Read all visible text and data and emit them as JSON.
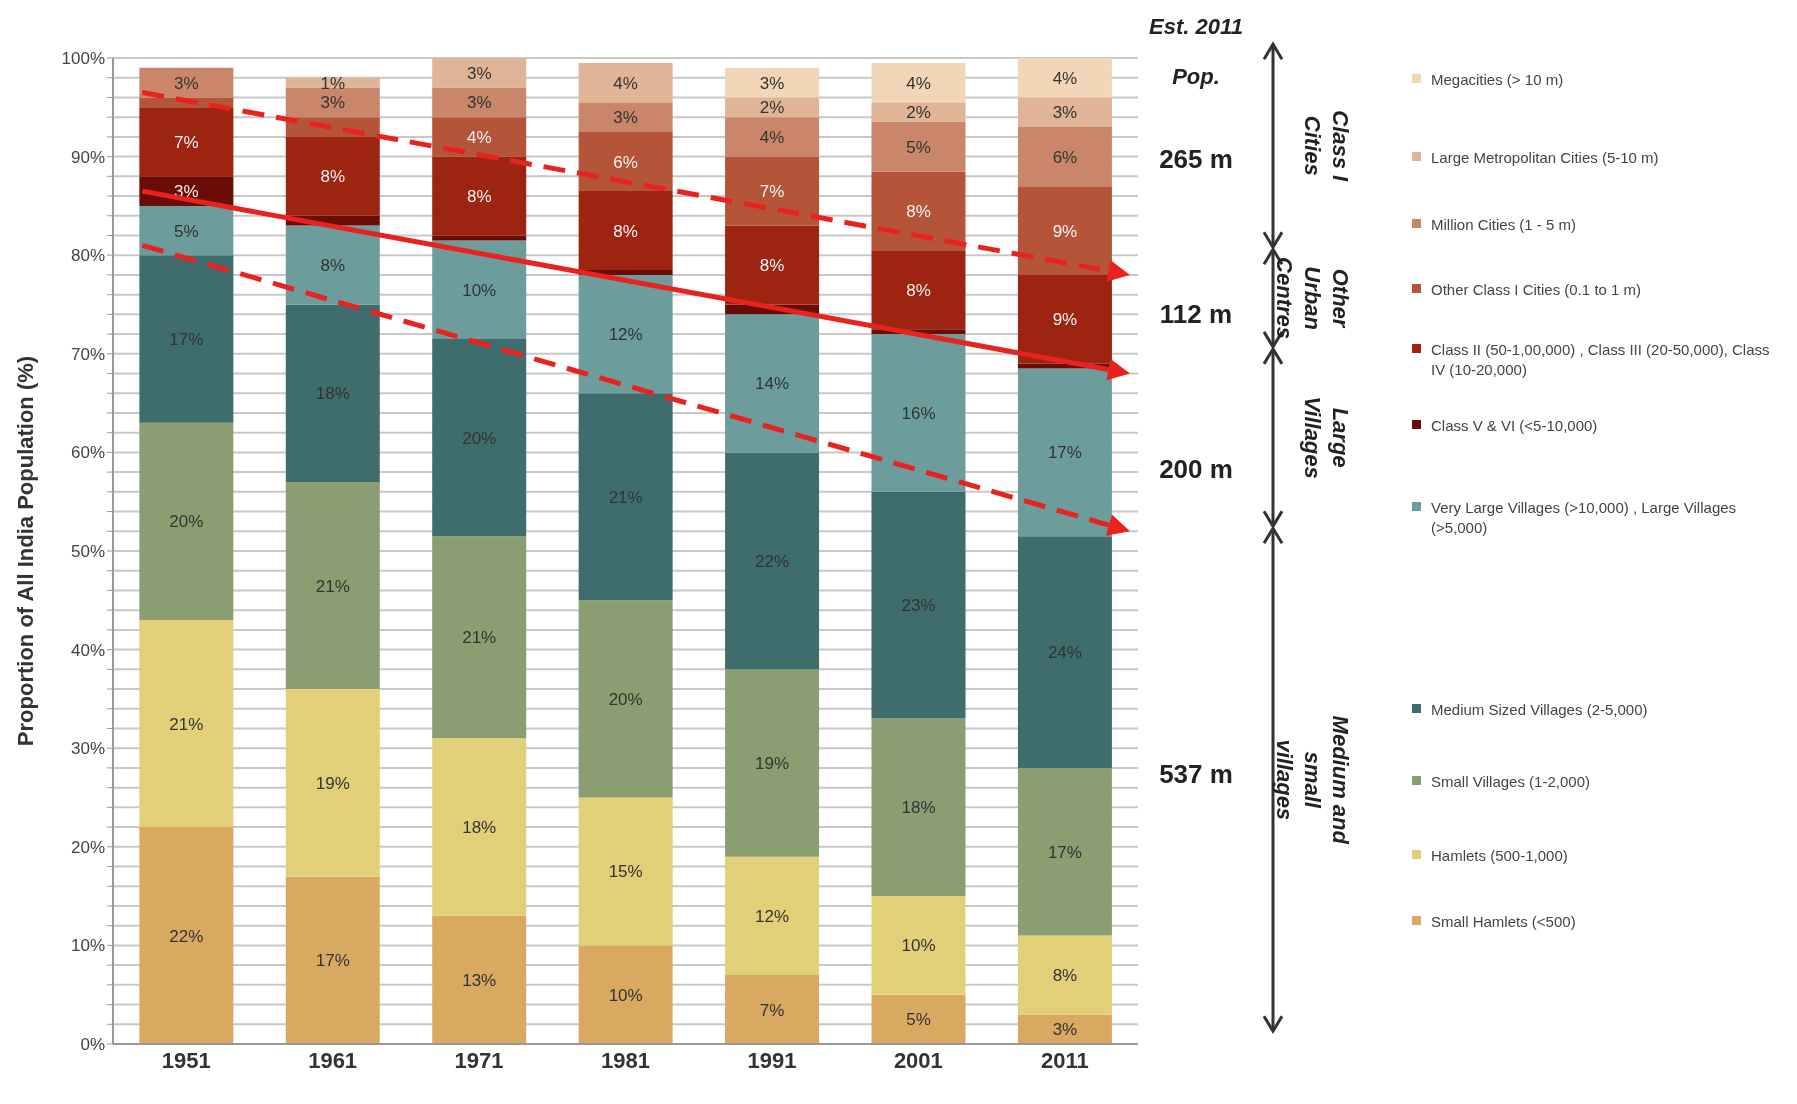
{
  "chart_data": {
    "type": "bar",
    "stacked": true,
    "ylabel": "Proportion of All India Population (%)",
    "categories": [
      "1951",
      "1961",
      "1971",
      "1981",
      "1991",
      "2001",
      "2011"
    ],
    "series": [
      {
        "name": "Small Hamlets (<500)",
        "color": "#d9a962",
        "values": [
          22,
          17,
          13,
          10,
          7,
          5,
          3
        ],
        "value_labels": [
          "22%",
          "17%",
          "13%",
          "10%",
          "7%",
          "5%",
          "3%"
        ]
      },
      {
        "name": "Hamlets (500-1,000)",
        "color": "#e2d078",
        "values": [
          21,
          19,
          18,
          15,
          12,
          10,
          8
        ],
        "value_labels": [
          "21%",
          "19%",
          "18%",
          "15%",
          "12%",
          "10%",
          "8%"
        ]
      },
      {
        "name": "Small Villages (1-2,000)",
        "color": "#8a9e72",
        "values": [
          20,
          21,
          20.5,
          20,
          19,
          18,
          17
        ],
        "value_labels": [
          "20%",
          "21%",
          "21%",
          "20%",
          "19%",
          "18%",
          "17%"
        ]
      },
      {
        "name": "Medium Sized Villages (2-5,000)",
        "color": "#3f6c6c",
        "values": [
          17,
          18,
          20,
          21,
          22,
          23,
          23.5
        ],
        "value_labels": [
          "17%",
          "18%",
          "20%",
          "21%",
          "22%",
          "23%",
          "24%"
        ]
      },
      {
        "name": "Very Large Villages (>10,000) , Large Villages (>5,000)",
        "color": "#6c9d9c",
        "values": [
          5,
          8,
          10,
          12,
          14,
          16,
          17
        ],
        "value_labels": [
          "5%",
          "8%",
          "10%",
          "12%",
          "14%",
          "16%",
          "17%"
        ]
      },
      {
        "name": "Class V & VI  (<5-10,000)",
        "color": "#6b0d07",
        "values": [
          3,
          1,
          0.5,
          0.5,
          1,
          0.5,
          0.5
        ],
        "value_labels": [
          "3%",
          null,
          null,
          null,
          null,
          null,
          null
        ]
      },
      {
        "name": "Class II (50-1,00,000) , Class III (20-50,000), Class IV (10-20,000)",
        "color": "#9c2411",
        "values": [
          7,
          8,
          8,
          8,
          8,
          8,
          9
        ],
        "value_labels": [
          "7%",
          "8%",
          "8%",
          "8%",
          "8%",
          "8%",
          "9%"
        ]
      },
      {
        "name": "Other Class I Cities (0.1 to 1 m)",
        "color": "#b4553a",
        "values": [
          1,
          2,
          4,
          6,
          7,
          8,
          9
        ],
        "value_labels": [
          null,
          null,
          "4%",
          "6%",
          "7%",
          "8%",
          "9%"
        ]
      },
      {
        "name": "Million Cities (1 - 5 m)",
        "color": "#c9866a",
        "values": [
          3,
          3,
          3,
          3,
          4,
          5,
          6
        ],
        "value_labels": [
          "3%",
          "3%",
          "3%",
          "3%",
          "4%",
          "5%",
          "6%"
        ]
      },
      {
        "name": "Large Metropolitan Cities (5-10 m)",
        "color": "#e0b497",
        "values": [
          0,
          1,
          3,
          4,
          2,
          2,
          3
        ],
        "value_labels": [
          null,
          "1%",
          "3%",
          "4%",
          "2%",
          "2%",
          "3%"
        ]
      },
      {
        "name": "Megacities (> 10 m)",
        "color": "#f3d6b8",
        "values": [
          0,
          0,
          0,
          0,
          3,
          4,
          4
        ],
        "value_labels": [
          null,
          null,
          null,
          null,
          "3%",
          "4%",
          "4%"
        ]
      }
    ],
    "ylim": [
      0,
      100
    ],
    "yticks": [
      {
        "value": 0,
        "label": "0%"
      },
      {
        "value": 2,
        "label": null
      },
      {
        "value": 4,
        "label": null
      },
      {
        "value": 6,
        "label": null
      },
      {
        "value": 8,
        "label": null
      },
      {
        "value": 10,
        "label": "10%"
      },
      {
        "value": 12,
        "label": null
      },
      {
        "value": 14,
        "label": null
      },
      {
        "value": 16,
        "label": null
      },
      {
        "value": 18,
        "label": null
      },
      {
        "value": 20,
        "label": "20%"
      },
      {
        "value": 22,
        "label": null
      },
      {
        "value": 24,
        "label": null
      },
      {
        "value": 26,
        "label": null
      },
      {
        "value": 28,
        "label": null
      },
      {
        "value": 30,
        "label": "30%"
      },
      {
        "value": 32,
        "label": null
      },
      {
        "value": 34,
        "label": null
      },
      {
        "value": 36,
        "label": null
      },
      {
        "value": 38,
        "label": null
      },
      {
        "value": 40,
        "label": "40%"
      },
      {
        "value": 42,
        "label": null
      },
      {
        "value": 44,
        "label": null
      },
      {
        "value": 46,
        "label": null
      },
      {
        "value": 48,
        "label": null
      },
      {
        "value": 50,
        "label": "50%"
      },
      {
        "value": 52,
        "label": null
      },
      {
        "value": 54,
        "label": null
      },
      {
        "value": 56,
        "label": null
      },
      {
        "value": 58,
        "label": null
      },
      {
        "value": 60,
        "label": "60%"
      },
      {
        "value": 62,
        "label": null
      },
      {
        "value": 64,
        "label": null
      },
      {
        "value": 66,
        "label": null
      },
      {
        "value": 68,
        "label": null
      },
      {
        "value": 70,
        "label": "70%"
      },
      {
        "value": 72,
        "label": null
      },
      {
        "value": 74,
        "label": null
      },
      {
        "value": 76,
        "label": null
      },
      {
        "value": 78,
        "label": null
      },
      {
        "value": 80,
        "label": "80%"
      },
      {
        "value": 82,
        "label": null
      },
      {
        "value": 84,
        "label": null
      },
      {
        "value": 86,
        "label": null
      },
      {
        "value": 88,
        "label": null
      },
      {
        "value": 90,
        "label": "90%"
      },
      {
        "value": 92,
        "label": null
      },
      {
        "value": 94,
        "label": null
      },
      {
        "value": 96,
        "label": null
      },
      {
        "value": 98,
        "label": null
      },
      {
        "value": 100,
        "label": "100%"
      }
    ],
    "grid": "y",
    "legend": "right",
    "annotations": [
      "Est. 2011",
      "Pop.",
      "265 m",
      "112 m",
      "200 m",
      "537 m",
      "Class I Cities",
      "Other Urban Centres",
      "Large Villages",
      "Medium and small villages"
    ]
  }
}
